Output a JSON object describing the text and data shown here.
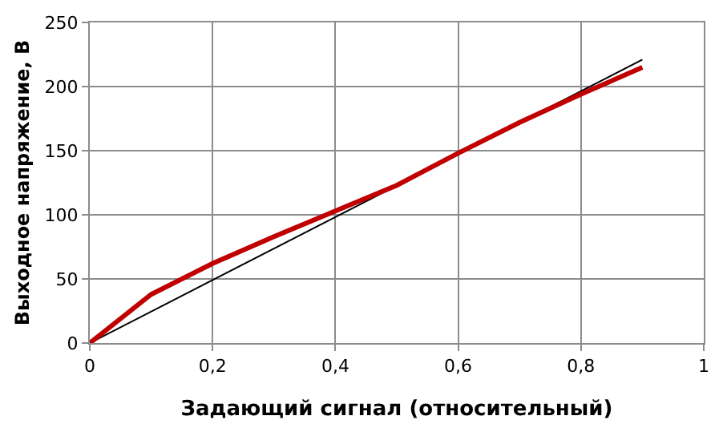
{
  "chart_data": {
    "type": "line",
    "xlabel": "Задающий сигнал (относительный)",
    "ylabel": "Выходное напряжение, В",
    "xlim": [
      0,
      1
    ],
    "xticks": [
      0,
      {
        "value": 0.2,
        "label": "0,2"
      },
      {
        "value": 0.4,
        "label": "0,4"
      },
      {
        "value": 0.6,
        "label": "0,6"
      },
      {
        "value": 0.8,
        "label": "0,8"
      },
      1
    ],
    "ylim": [
      0,
      250
    ],
    "yticks": [
      0,
      50,
      100,
      150,
      200,
      250
    ],
    "grid": true,
    "marker": "none",
    "line_style": "solid",
    "series": [
      {
        "color": "#000000",
        "x": [
          0,
          0.9
        ],
        "values": [
          0,
          221
        ]
      },
      {
        "color": "#c00000",
        "x": [
          0,
          0.1,
          0.2,
          0.3,
          0.4,
          0.5,
          0.6,
          0.7,
          0.8,
          0.9
        ],
        "values": [
          0,
          38,
          62,
          83,
          103,
          123,
          148,
          172,
          194,
          215
        ]
      }
    ]
  }
}
